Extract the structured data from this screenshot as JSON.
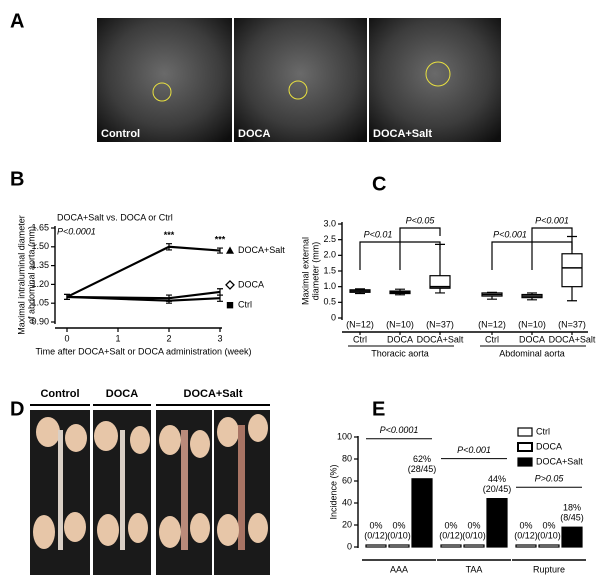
{
  "panel_labels": [
    "A",
    "B",
    "C",
    "D",
    "E"
  ],
  "panel_a": {
    "captions": [
      "Control",
      "DOCA",
      "DOCA+Salt"
    ]
  },
  "panel_d": {
    "captions": [
      "Control",
      "DOCA",
      "DOCA+Salt"
    ]
  },
  "chart_data": [
    {
      "type": "line",
      "annotations": [
        "DOCA+Salt vs. DOCA or Ctrl",
        "P<0.0001"
      ],
      "ylabel": [
        "Maximal intraluminal diameter",
        "of abdominal aorta (mm)"
      ],
      "xlabel": "Time after DOCA+Salt or DOCA administration (week)",
      "x": [
        0,
        2,
        3
      ],
      "xlim": [
        0,
        3
      ],
      "xticks": [
        0,
        1,
        2,
        3
      ],
      "ylim": [
        0.9,
        1.65
      ],
      "yticks": [
        {
          "value": 0.9,
          "label": "0.90"
        },
        1.05,
        {
          "value": 1.2,
          "label": "1.20"
        },
        1.35,
        {
          "value": 1.5,
          "label": "1.50"
        },
        1.65
      ],
      "series": [
        {
          "name": "DOCA+Salt",
          "color": "#000000",
          "marker": "triangle",
          "values": [
            1.1,
            1.5,
            1.47
          ],
          "errors": [
            0.02,
            0.025,
            0.02
          ],
          "significance": [
            null,
            "***",
            "***"
          ]
        },
        {
          "name": "DOCA",
          "color": "#000000",
          "marker": "diamond-open",
          "values": [
            1.1,
            1.09,
            1.14
          ],
          "errors": [
            0.02,
            0.025,
            0.025
          ]
        },
        {
          "name": "Ctrl",
          "color": "#000000",
          "marker": "square",
          "values": [
            1.1,
            1.07,
            1.09
          ],
          "errors": [
            0.02,
            0.02,
            0.025
          ]
        }
      ]
    },
    {
      "type": "box",
      "ylabel": [
        "Maximal external",
        "diameter (mm)"
      ],
      "ylim": [
        0,
        3
      ],
      "yticks": [
        0,
        0.5,
        {
          "value": 1,
          "label": "1.0"
        },
        1.5,
        {
          "value": 2,
          "label": "2.0"
        },
        2.5,
        {
          "value": 3,
          "label": "3.0"
        }
      ],
      "groups": [
        {
          "name": "Thoracic aorta",
          "categories": [
            "Ctrl",
            "DOCA",
            "DOCA+Salt"
          ],
          "n_labels": [
            "(N=12)",
            "(N=10)",
            "(N=37)"
          ],
          "stats": [
            [
              0.78,
              0.82,
              0.86,
              0.9,
              0.93
            ],
            [
              0.74,
              0.78,
              0.82,
              0.86,
              0.92
            ],
            [
              0.8,
              0.95,
              1.0,
              1.35,
              2.35
            ]
          ],
          "comparisons": [
            "P<0.01",
            "P<0.05"
          ]
        },
        {
          "name": "Abdominal aorta",
          "categories": [
            "Ctrl",
            "DOCA",
            "DOCA+Salt"
          ],
          "n_labels": [
            "(N=12)",
            "(N=10)",
            "(N=37)"
          ],
          "stats": [
            [
              0.6,
              0.7,
              0.75,
              0.8,
              0.82
            ],
            [
              0.58,
              0.65,
              0.7,
              0.75,
              0.8
            ],
            [
              0.55,
              1.0,
              1.6,
              2.05,
              2.6
            ]
          ],
          "comparisons": [
            "P<0.001",
            "P<0.001"
          ]
        }
      ]
    },
    {
      "type": "bar",
      "ylabel": "Incidence (%)",
      "categories": [
        "AAA",
        "TAA",
        "Rupture"
      ],
      "p_labels": [
        "P<0.0001",
        "P<0.001",
        "P>0.05"
      ],
      "ylim": [
        0,
        100
      ],
      "yticks": [
        0,
        20,
        40,
        60,
        80,
        100
      ],
      "legend": "top-right",
      "series": [
        {
          "name": "Ctrl",
          "color": "#ffffff",
          "values": [
            0,
            0,
            0
          ],
          "value_labels": [
            "0%",
            "0%",
            "0%"
          ],
          "count_labels": [
            "(0/12)",
            "(0/12)",
            "(0/12)"
          ]
        },
        {
          "name": "DOCA",
          "color": "#ffffff",
          "values": [
            0,
            0,
            0
          ],
          "value_labels": [
            "0%",
            "0%",
            "0%"
          ],
          "count_labels": [
            "(0/10)",
            "(0/10)",
            "(0/10)"
          ]
        },
        {
          "name": "DOCA+Salt",
          "color": "#000000",
          "values": [
            62,
            44,
            18
          ],
          "value_labels": [
            "62%",
            "44%",
            "18%"
          ],
          "count_labels": [
            "(28/45)",
            "(20/45)",
            "(8/45)"
          ]
        }
      ]
    }
  ]
}
